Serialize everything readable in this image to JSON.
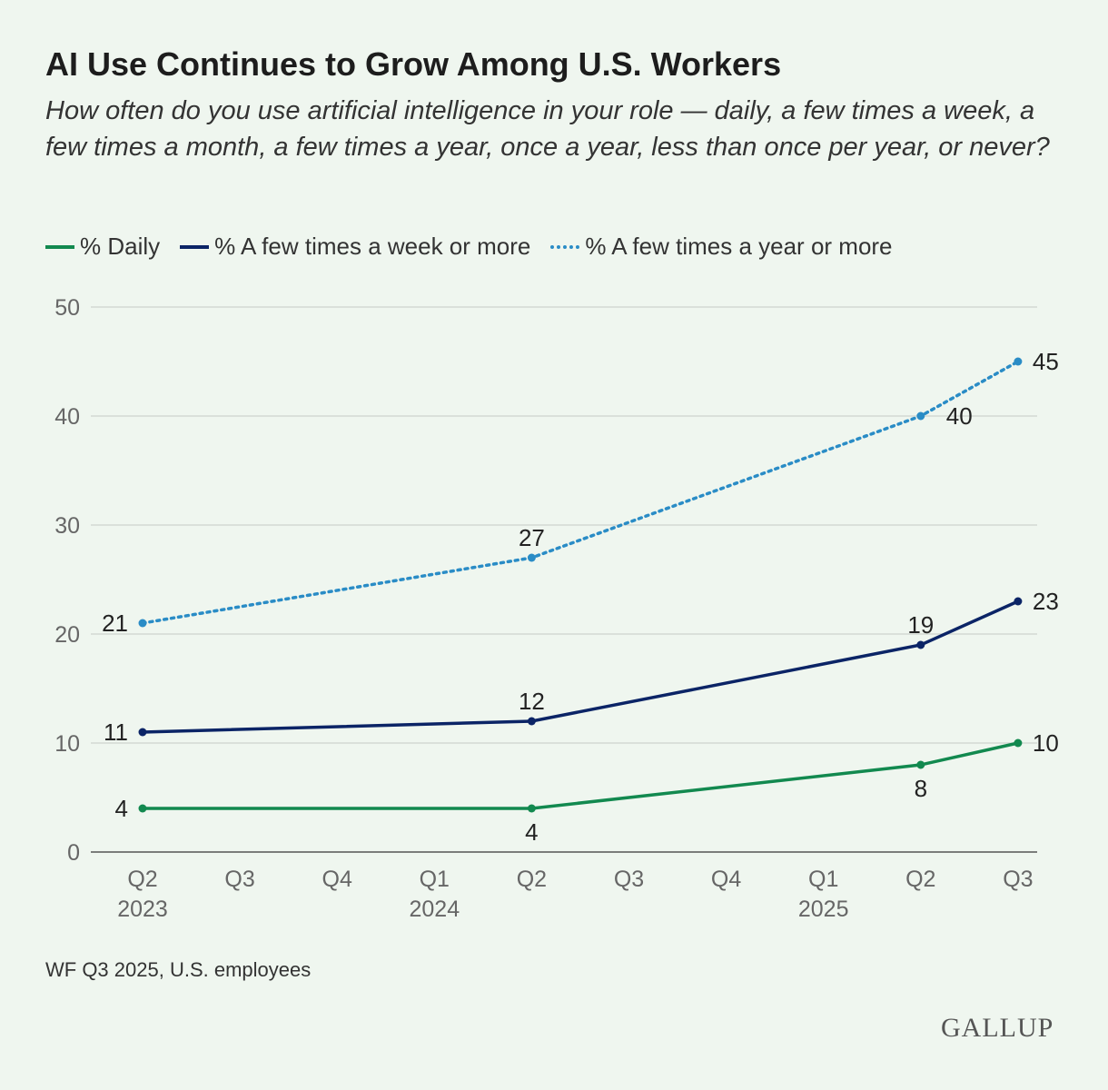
{
  "title": "AI Use Continues to Grow Among U.S. Workers",
  "subtitle": "How often do you use artificial intelligence in your role — daily, a few times a week, a few times a month, a few times a year, once a year, less than once per year, or never?",
  "source": "WF Q3 2025, U.S. employees",
  "logo": "GALLUP",
  "chart_data": {
    "type": "line",
    "ylim": [
      0,
      50
    ],
    "yticks": [
      "0",
      "10",
      "20",
      "30",
      "40",
      "50"
    ],
    "grid": true,
    "legend": "top-left",
    "x_ticks": [
      {
        "q": "Q2",
        "y": "2023"
      },
      {
        "q": "Q3",
        "y": ""
      },
      {
        "q": "Q4",
        "y": ""
      },
      {
        "q": "Q1",
        "y": "2024"
      },
      {
        "q": "Q2",
        "y": ""
      },
      {
        "q": "Q3",
        "y": ""
      },
      {
        "q": "Q4",
        "y": ""
      },
      {
        "q": "Q1",
        "y": "2025"
      },
      {
        "q": "Q2",
        "y": ""
      },
      {
        "q": "Q3",
        "y": ""
      }
    ],
    "series": [
      {
        "name": "% Daily",
        "color": "#12894f",
        "dotted": false,
        "x": [
          "Q2 2023",
          "Q2 2024",
          "Q2 2025",
          "Q3 2025"
        ],
        "values": [
          4,
          4,
          8,
          10
        ]
      },
      {
        "name": "% A few times a week or more",
        "color": "#0b2466",
        "dotted": false,
        "x": [
          "Q2 2023",
          "Q2 2024",
          "Q2 2025",
          "Q3 2025"
        ],
        "values": [
          11,
          12,
          19,
          23
        ]
      },
      {
        "name": "% A few times a year or more",
        "color": "#2a8cc6",
        "dotted": true,
        "x": [
          "Q2 2023",
          "Q2 2024",
          "Q2 2025",
          "Q3 2025"
        ],
        "values": [
          21,
          27,
          40,
          45
        ]
      }
    ]
  }
}
